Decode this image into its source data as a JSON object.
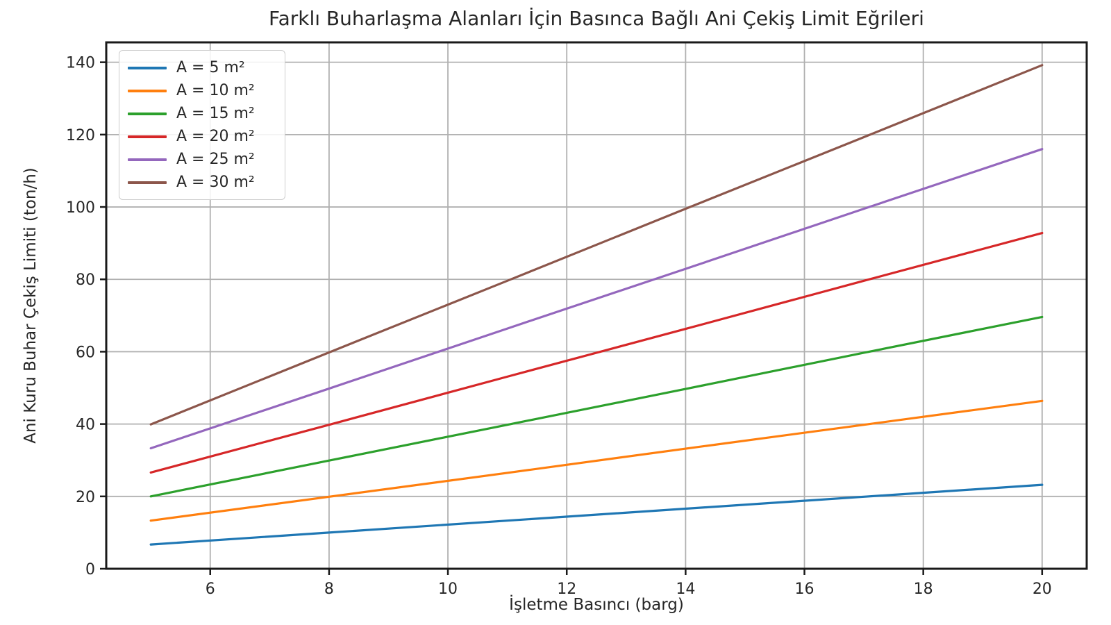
{
  "figure": {
    "background": "#ffffff",
    "axis_color": "#1a1a1a",
    "text_color": "#262626"
  },
  "chart_data": {
    "type": "line",
    "title": "Farklı Buharlaşma Alanları İçin Basınca Bağlı Ani Çekiş Limit Eğrileri",
    "xlabel": "İşletme Basıncı (barg)",
    "ylabel": "Ani Kuru Buhar Çekiş Limiti (ton/h)",
    "x": [
      5,
      8,
      11,
      14,
      17,
      20
    ],
    "series": [
      {
        "name": "A = 5 m²",
        "color": "#1f77b4",
        "values": [
          6.7,
          10.0,
          13.3,
          16.6,
          19.9,
          23.2
        ]
      },
      {
        "name": "A = 10 m²",
        "color": "#ff7f0e",
        "values": [
          13.3,
          19.9,
          26.5,
          33.2,
          39.8,
          46.4
        ]
      },
      {
        "name": "A = 15 m²",
        "color": "#2ca02c",
        "values": [
          20.0,
          29.9,
          39.8,
          49.7,
          59.7,
          69.6
        ]
      },
      {
        "name": "A = 20 m²",
        "color": "#d62728",
        "values": [
          26.6,
          39.8,
          53.1,
          66.3,
          79.6,
          92.8
        ]
      },
      {
        "name": "A = 25 m²",
        "color": "#9467bd",
        "values": [
          33.3,
          49.8,
          66.4,
          82.9,
          99.5,
          116.0
        ]
      },
      {
        "name": "A = 30 m²",
        "color": "#8c564b",
        "values": [
          39.9,
          59.8,
          79.6,
          99.5,
          119.3,
          139.2
        ]
      }
    ],
    "xticks": [
      6,
      8,
      10,
      12,
      14,
      16,
      18,
      20
    ],
    "yticks": [
      0,
      20,
      40,
      60,
      80,
      100,
      120,
      140
    ],
    "xlim": [
      4.25,
      20.75
    ],
    "ylim": [
      0,
      145.5
    ],
    "grid": true,
    "grid_color": "#b0b0b0",
    "legend_position": "upper left"
  }
}
